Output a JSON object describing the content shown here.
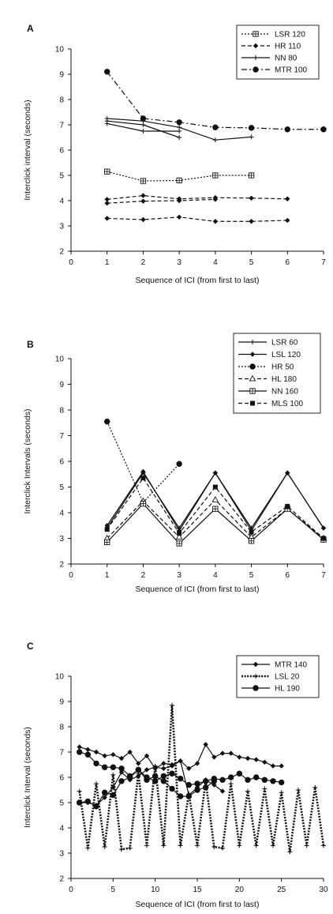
{
  "chart_data": [
    {
      "panel_label": "A",
      "type": "line",
      "xlabel": "Sequence of ICI (from first to last)",
      "ylabel": "Interclick interval (seconds)",
      "xlim": [
        0,
        7
      ],
      "ylim": [
        2,
        10
      ],
      "xticks": [
        0,
        1,
        2,
        3,
        4,
        5,
        6,
        7
      ],
      "yticks": [
        2,
        3,
        4,
        5,
        6,
        7,
        8,
        9,
        10
      ],
      "grid": false,
      "legend_position": "top-right",
      "legend": [
        "LSR 120",
        "HR 110",
        "NN 80",
        "MTR 100"
      ],
      "series": [
        {
          "name": "LSR 120",
          "line": "dotted",
          "marker": "boxplus",
          "points": [
            {
              "label": "LSR 120",
              "x": [
                1,
                2,
                3,
                4,
                5
              ],
              "y": [
                5.15,
                4.78,
                4.8,
                5.0,
                5.0
              ]
            }
          ]
        },
        {
          "name": "HR 110",
          "line": "dashed",
          "marker": "diamond",
          "points": [
            {
              "x": [
                1,
                2,
                3,
                4,
                5,
                6
              ],
              "y": [
                4.05,
                4.2,
                4.07,
                4.12,
                4.1,
                4.07
              ]
            },
            {
              "x": [
                1,
                2,
                3,
                4
              ],
              "y": [
                3.9,
                3.98,
                4.0,
                4.05
              ]
            },
            {
              "x": [
                1,
                2,
                3,
                4,
                5,
                6
              ],
              "y": [
                3.3,
                3.25,
                3.35,
                3.18,
                3.18,
                3.22
              ]
            }
          ]
        },
        {
          "name": "NN 80",
          "line": "solid",
          "marker": "plus",
          "points": [
            {
              "x": [
                1,
                2,
                3,
                4,
                5
              ],
              "y": [
                7.25,
                7.15,
                6.9,
                6.4,
                6.52
              ]
            },
            {
              "x": [
                1,
                2,
                3
              ],
              "y": [
                7.05,
                6.75,
                6.75
              ]
            },
            {
              "x": [
                1,
                2,
                3
              ],
              "y": [
                7.15,
                7.0,
                6.5
              ]
            }
          ]
        },
        {
          "name": "MTR 100",
          "line": "dashdot",
          "marker": "circle",
          "points": [
            {
              "x": [
                1,
                2,
                3,
                4,
                5,
                6,
                7
              ],
              "y": [
                9.1,
                7.25,
                7.1,
                6.9,
                6.88,
                6.82,
                6.82
              ]
            }
          ]
        }
      ]
    },
    {
      "panel_label": "B",
      "type": "line",
      "xlabel": "Sequence of ICI (from first to last)",
      "ylabel": "Interclick Intervals (seconds)",
      "xlim": [
        0,
        7
      ],
      "ylim": [
        2,
        10
      ],
      "xticks": [
        0,
        1,
        2,
        3,
        4,
        5,
        6,
        7
      ],
      "yticks": [
        2,
        3,
        4,
        5,
        6,
        7,
        8,
        9,
        10
      ],
      "grid": false,
      "legend_position": "top-right",
      "legend": [
        "LSR 60",
        "LSL 120",
        "HR 50",
        "HL 180",
        "NN 160",
        "MLS 100"
      ],
      "series": [
        {
          "name": "LSR 60",
          "line": "solid",
          "marker": "plus",
          "points": [
            {
              "x": [
                1,
                2,
                3,
                4,
                5,
                6,
                7
              ],
              "y": [
                3.4,
                5.55,
                3.4,
                5.55,
                3.4,
                5.55,
                3.4
              ]
            }
          ]
        },
        {
          "name": "LSL 120",
          "line": "solid",
          "marker": "diamond",
          "points": [
            {
              "x": [
                1,
                2,
                3,
                4,
                5,
                6,
                7
              ],
              "y": [
                3.5,
                5.6,
                3.3,
                5.55,
                3.3,
                5.55,
                3.4
              ]
            }
          ]
        },
        {
          "name": "HR 50",
          "line": "dotted",
          "marker": "circle",
          "points": [
            {
              "x": [
                1,
                2,
                3
              ],
              "y": [
                7.55,
                4.4,
                5.9
              ]
            }
          ]
        },
        {
          "name": "HL 180",
          "line": "dashed",
          "marker": "triangle",
          "points": [
            {
              "x": [
                1,
                2,
                3,
                4,
                5,
                6,
                7
              ],
              "y": [
                3.0,
                4.45,
                3.05,
                4.5,
                3.05,
                4.15,
                3.0
              ]
            }
          ]
        },
        {
          "name": "NN 160",
          "line": "solid",
          "marker": "boxplus",
          "points": [
            {
              "x": [
                1,
                2,
                3,
                4,
                5,
                6,
                7
              ],
              "y": [
                2.85,
                4.35,
                2.8,
                4.15,
                2.9,
                4.15,
                2.95
              ]
            }
          ]
        },
        {
          "name": "MLS 100",
          "line": "dashed",
          "marker": "square",
          "points": [
            {
              "x": [
                1,
                2,
                3,
                4,
                5,
                6,
                7
              ],
              "y": [
                3.35,
                5.35,
                3.2,
                5.0,
                3.25,
                4.25,
                3.0
              ]
            }
          ]
        }
      ]
    },
    {
      "panel_label": "C",
      "type": "line",
      "xlabel": "Sequence of ICI (from first to last)",
      "ylabel": "Interclick Interval (seconds)",
      "xlim": [
        0,
        30
      ],
      "ylim": [
        2,
        10
      ],
      "xticks": [
        0,
        5,
        10,
        15,
        20,
        25,
        30
      ],
      "yticks": [
        2,
        3,
        4,
        5,
        6,
        7,
        8,
        9,
        10
      ],
      "grid": false,
      "legend_position": "top-right",
      "legend": [
        "MTR 140",
        "LSL 20",
        "HL 190"
      ],
      "series": [
        {
          "name": "MTR 140",
          "line": "solid",
          "marker": "diamond",
          "points": [
            {
              "x": [
                1,
                2,
                3,
                4,
                5,
                6,
                7,
                8,
                9,
                10,
                11,
                12,
                13,
                14,
                15,
                16,
                17,
                18,
                19,
                20,
                21,
                22,
                23,
                24,
                25
              ],
              "y": [
                7.2,
                7.1,
                7.0,
                6.85,
                6.9,
                6.75,
                7.0,
                6.55,
                6.85,
                6.35,
                6.55,
                6.5,
                6.65,
                6.35,
                6.55,
                7.3,
                6.8,
                6.95,
                6.95,
                6.8,
                6.75,
                6.7,
                6.6,
                6.45,
                6.45
              ]
            },
            {
              "x": [
                1,
                2,
                3,
                4,
                5,
                6,
                7,
                8,
                9,
                10,
                11,
                12,
                13,
                14,
                15,
                16,
                17,
                18
              ],
              "y": [
                5.0,
                5.0,
                4.9,
                5.2,
                5.6,
                6.2,
                5.9,
                6.05,
                6.3,
                6.4,
                6.35,
                6.45,
                6.65,
                5.3,
                5.6,
                5.9,
                5.7,
                5.45
              ]
            }
          ]
        },
        {
          "name": "LSL 20",
          "line": "dotted-thick",
          "marker": "plus",
          "points": [
            {
              "x": [
                1,
                2,
                3,
                4,
                5,
                6,
                7,
                8,
                9,
                10,
                11,
                12,
                13,
                14,
                15,
                16,
                17,
                18,
                19,
                20,
                21,
                22,
                23,
                24,
                25,
                26,
                27,
                28,
                29,
                30
              ],
              "y": [
                5.45,
                3.2,
                5.75,
                3.25,
                6.1,
                3.15,
                3.2,
                6.15,
                3.3,
                6.45,
                3.3,
                8.85,
                3.3,
                5.35,
                3.3,
                5.85,
                3.25,
                3.2,
                5.75,
                3.3,
                5.45,
                3.3,
                5.55,
                3.3,
                5.4,
                3.05,
                5.5,
                3.3,
                5.6,
                3.3
              ]
            }
          ]
        },
        {
          "name": "HL 190",
          "line": "solid",
          "marker": "circle",
          "points": [
            {
              "x": [
                1,
                2,
                3,
                4,
                5,
                6,
                7,
                8,
                9,
                10,
                11,
                12,
                13,
                14,
                15,
                16,
                17,
                18,
                19,
                20,
                21,
                22,
                23,
                24,
                25
              ],
              "y": [
                7.0,
                6.9,
                6.55,
                6.4,
                6.4,
                6.35,
                6.05,
                6.3,
                6.0,
                5.85,
                6.05,
                6.15,
                5.95,
                5.7,
                5.75,
                5.85,
                5.95,
                5.9,
                6.0,
                6.15,
                5.9,
                6.0,
                5.9,
                5.85,
                5.8
              ]
            },
            {
              "x": [
                1,
                2,
                3,
                4,
                5,
                6,
                7,
                8,
                9,
                10,
                11,
                12,
                13,
                14,
                15,
                16,
                17
              ],
              "y": [
                5.0,
                5.05,
                4.85,
                5.4,
                5.3,
                5.85,
                6.0,
                6.3,
                5.9,
                6.05,
                5.85,
                5.55,
                5.25,
                5.25,
                5.5,
                5.6,
                5.85
              ]
            }
          ]
        }
      ]
    }
  ]
}
